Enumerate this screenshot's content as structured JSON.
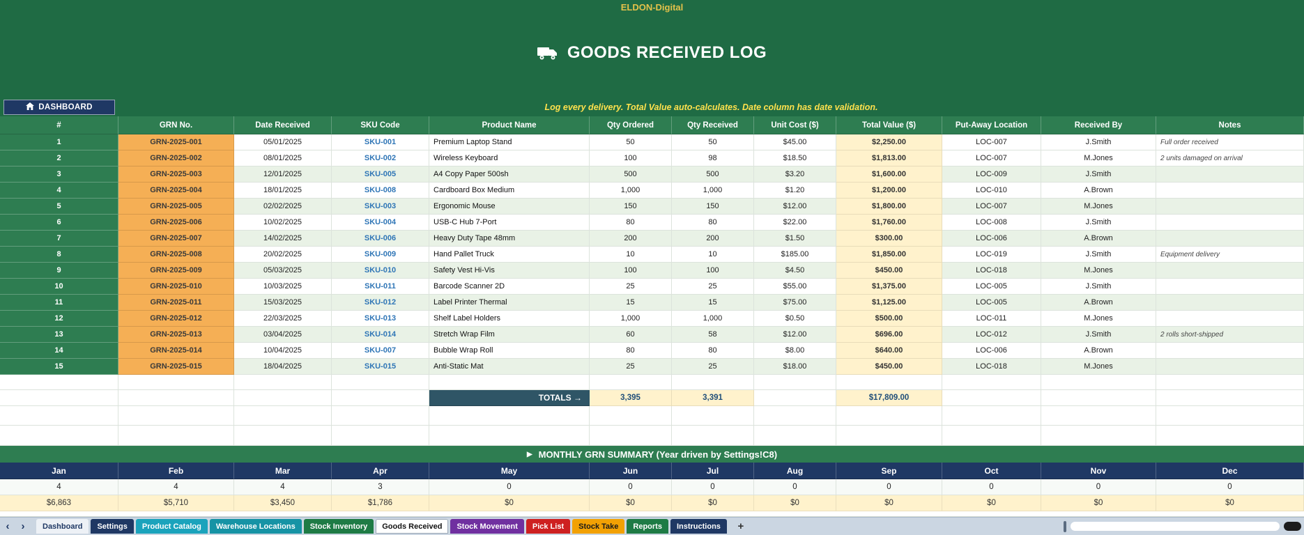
{
  "header": {
    "brand": "ELDON-Digital",
    "title": "GOODS RECEIVED LOG",
    "dashboard_button": "DASHBOARD",
    "instruction": "Log every delivery. Total Value auto-calculates. Date column has date validation."
  },
  "table": {
    "headers": [
      "#",
      "GRN No.",
      "Date Received",
      "SKU Code",
      "Product Name",
      "Qty Ordered",
      "Qty Received",
      "Unit Cost ($)",
      "Total Value ($)",
      "Put-Away Location",
      "Received By",
      "Notes"
    ],
    "rows": [
      {
        "num": "1",
        "grn": "GRN-2025-001",
        "date": "05/01/2025",
        "sku": "SKU-001",
        "product": "Premium Laptop Stand",
        "qty_ordered": "50",
        "qty_received": "50",
        "unit_cost": "$45.00",
        "total_value": "$2,250.00",
        "location": "LOC-007",
        "received_by": "J.Smith",
        "notes": "Full order received"
      },
      {
        "num": "2",
        "grn": "GRN-2025-002",
        "date": "08/01/2025",
        "sku": "SKU-002",
        "product": "Wireless Keyboard",
        "qty_ordered": "100",
        "qty_received": "98",
        "unit_cost": "$18.50",
        "total_value": "$1,813.00",
        "location": "LOC-007",
        "received_by": "M.Jones",
        "notes": "2 units damaged on arrival"
      },
      {
        "num": "3",
        "grn": "GRN-2025-003",
        "date": "12/01/2025",
        "sku": "SKU-005",
        "product": "A4 Copy Paper 500sh",
        "qty_ordered": "500",
        "qty_received": "500",
        "unit_cost": "$3.20",
        "total_value": "$1,600.00",
        "location": "LOC-009",
        "received_by": "J.Smith",
        "notes": ""
      },
      {
        "num": "4",
        "grn": "GRN-2025-004",
        "date": "18/01/2025",
        "sku": "SKU-008",
        "product": "Cardboard Box Medium",
        "qty_ordered": "1,000",
        "qty_received": "1,000",
        "unit_cost": "$1.20",
        "total_value": "$1,200.00",
        "location": "LOC-010",
        "received_by": "A.Brown",
        "notes": ""
      },
      {
        "num": "5",
        "grn": "GRN-2025-005",
        "date": "02/02/2025",
        "sku": "SKU-003",
        "product": "Ergonomic Mouse",
        "qty_ordered": "150",
        "qty_received": "150",
        "unit_cost": "$12.00",
        "total_value": "$1,800.00",
        "location": "LOC-007",
        "received_by": "M.Jones",
        "notes": ""
      },
      {
        "num": "6",
        "grn": "GRN-2025-006",
        "date": "10/02/2025",
        "sku": "SKU-004",
        "product": "USB-C Hub 7-Port",
        "qty_ordered": "80",
        "qty_received": "80",
        "unit_cost": "$22.00",
        "total_value": "$1,760.00",
        "location": "LOC-008",
        "received_by": "J.Smith",
        "notes": ""
      },
      {
        "num": "7",
        "grn": "GRN-2025-007",
        "date": "14/02/2025",
        "sku": "SKU-006",
        "product": "Heavy Duty Tape 48mm",
        "qty_ordered": "200",
        "qty_received": "200",
        "unit_cost": "$1.50",
        "total_value": "$300.00",
        "location": "LOC-006",
        "received_by": "A.Brown",
        "notes": ""
      },
      {
        "num": "8",
        "grn": "GRN-2025-008",
        "date": "20/02/2025",
        "sku": "SKU-009",
        "product": "Hand Pallet Truck",
        "qty_ordered": "10",
        "qty_received": "10",
        "unit_cost": "$185.00",
        "total_value": "$1,850.00",
        "location": "LOC-019",
        "received_by": "J.Smith",
        "notes": "Equipment delivery"
      },
      {
        "num": "9",
        "grn": "GRN-2025-009",
        "date": "05/03/2025",
        "sku": "SKU-010",
        "product": "Safety Vest Hi-Vis",
        "qty_ordered": "100",
        "qty_received": "100",
        "unit_cost": "$4.50",
        "total_value": "$450.00",
        "location": "LOC-018",
        "received_by": "M.Jones",
        "notes": ""
      },
      {
        "num": "10",
        "grn": "GRN-2025-010",
        "date": "10/03/2025",
        "sku": "SKU-011",
        "product": "Barcode Scanner 2D",
        "qty_ordered": "25",
        "qty_received": "25",
        "unit_cost": "$55.00",
        "total_value": "$1,375.00",
        "location": "LOC-005",
        "received_by": "J.Smith",
        "notes": ""
      },
      {
        "num": "11",
        "grn": "GRN-2025-011",
        "date": "15/03/2025",
        "sku": "SKU-012",
        "product": "Label Printer Thermal",
        "qty_ordered": "15",
        "qty_received": "15",
        "unit_cost": "$75.00",
        "total_value": "$1,125.00",
        "location": "LOC-005",
        "received_by": "A.Brown",
        "notes": ""
      },
      {
        "num": "12",
        "grn": "GRN-2025-012",
        "date": "22/03/2025",
        "sku": "SKU-013",
        "product": "Shelf Label Holders",
        "qty_ordered": "1,000",
        "qty_received": "1,000",
        "unit_cost": "$0.50",
        "total_value": "$500.00",
        "location": "LOC-011",
        "received_by": "M.Jones",
        "notes": ""
      },
      {
        "num": "13",
        "grn": "GRN-2025-013",
        "date": "03/04/2025",
        "sku": "SKU-014",
        "product": "Stretch Wrap Film",
        "qty_ordered": "60",
        "qty_received": "58",
        "unit_cost": "$12.00",
        "total_value": "$696.00",
        "location": "LOC-012",
        "received_by": "J.Smith",
        "notes": "2 rolls short-shipped"
      },
      {
        "num": "14",
        "grn": "GRN-2025-014",
        "date": "10/04/2025",
        "sku": "SKU-007",
        "product": "Bubble Wrap Roll",
        "qty_ordered": "80",
        "qty_received": "80",
        "unit_cost": "$8.00",
        "total_value": "$640.00",
        "location": "LOC-006",
        "received_by": "A.Brown",
        "notes": ""
      },
      {
        "num": "15",
        "grn": "GRN-2025-015",
        "date": "18/04/2025",
        "sku": "SKU-015",
        "product": "Anti-Static Mat",
        "qty_ordered": "25",
        "qty_received": "25",
        "unit_cost": "$18.00",
        "total_value": "$450.00",
        "location": "LOC-018",
        "received_by": "M.Jones",
        "notes": ""
      }
    ],
    "totals": {
      "label": "TOTALS →",
      "qty_ordered": "3,395",
      "qty_received": "3,391",
      "total_value": "$17,809.00"
    }
  },
  "monthly": {
    "arrow_icon": "▶",
    "title": "MONTHLY GRN SUMMARY (Year driven by Settings!C8)",
    "months": [
      "Jan",
      "Feb",
      "Mar",
      "Apr",
      "May",
      "Jun",
      "Jul",
      "Aug",
      "Sep",
      "Oct",
      "Nov",
      "Dec"
    ],
    "counts": [
      "4",
      "4",
      "4",
      "3",
      "0",
      "0",
      "0",
      "0",
      "0",
      "0",
      "0",
      "0"
    ],
    "values": [
      "$6,863",
      "$5,710",
      "$3,450",
      "$1,786",
      "$0",
      "$0",
      "$0",
      "$0",
      "$0",
      "$0",
      "$0",
      "$0"
    ]
  },
  "tabbar": {
    "nav_left": "‹",
    "nav_right": "›",
    "add_label": "+",
    "tabs": [
      {
        "label": "Dashboard",
        "bg": "#EDF1F6",
        "fg": "#1F3864",
        "active": false
      },
      {
        "label": "Settings",
        "bg": "#1F3864",
        "fg": "#FFFFFF",
        "active": false
      },
      {
        "label": "Product Catalog",
        "bg": "#1BA3BC",
        "fg": "#FFFFFF",
        "active": false
      },
      {
        "label": "Warehouse Locations",
        "bg": "#1693A5",
        "fg": "#FFFFFF",
        "active": false
      },
      {
        "label": "Stock Inventory",
        "bg": "#1E7B45",
        "fg": "#FFFFFF",
        "active": false
      },
      {
        "label": "Goods Received",
        "bg": "#FFFFFF",
        "fg": "#111111",
        "active": true
      },
      {
        "label": "Stock Movement",
        "bg": "#7030A0",
        "fg": "#FFFFFF",
        "active": false
      },
      {
        "label": "Pick List",
        "bg": "#CE2121",
        "fg": "#FFFFFF",
        "active": false
      },
      {
        "label": "Stock Take",
        "bg": "#F2A104",
        "fg": "#1A1A1A",
        "active": false
      },
      {
        "label": "Reports",
        "bg": "#1E7B45",
        "fg": "#FFFFFF",
        "active": false
      },
      {
        "label": "Instructions",
        "bg": "#1F3864",
        "fg": "#FFFFFF",
        "active": false
      }
    ]
  },
  "colors": {
    "band_green": "#1F6B44",
    "header_green": "#2E7D51",
    "grn_fill": "#F5AF55",
    "value_fill": "#FFF2CC",
    "navy": "#1F3864",
    "accent_yellow": "#FFE14D",
    "brand_gold": "#E4C24A",
    "totals_box": "#2F5566",
    "sku_blue": "#2E75B6"
  }
}
